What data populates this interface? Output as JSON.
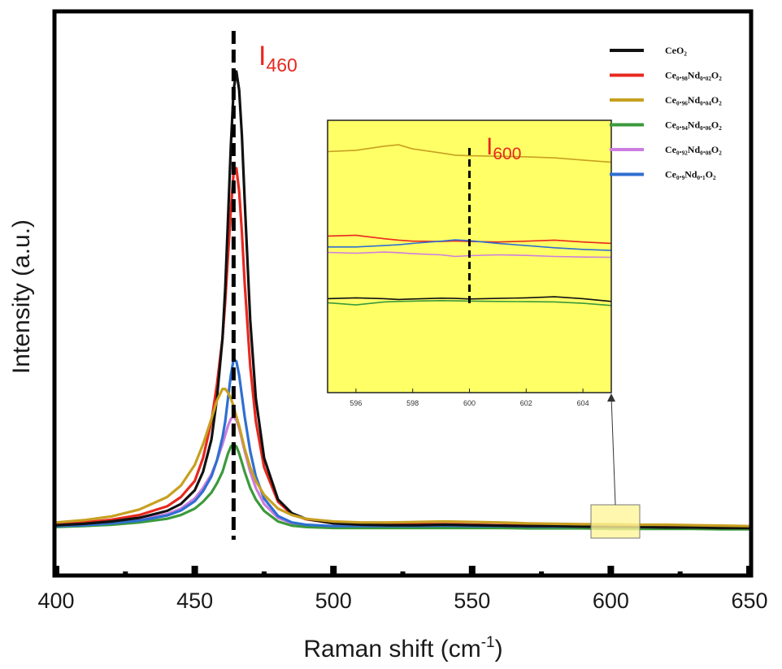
{
  "chart_data": {
    "type": "line",
    "xlabel": "Raman shift (cm",
    "xlabel_sup": "-1",
    "xlabel_close": ")",
    "ylabel": "Intensity (a.u.)",
    "xlim": [
      400,
      650
    ],
    "ylim": [
      0,
      1.0
    ],
    "x_ticks": [
      "400",
      "450",
      "500",
      "550",
      "600",
      "650"
    ],
    "y_ticks_shown": false,
    "grid": false,
    "legend_position": "top-right",
    "peak_line_x": 464,
    "annotations": {
      "main": {
        "text": "I",
        "sub": "460",
        "color": "#e8281f"
      },
      "inset": {
        "text": "I",
        "sub": "600",
        "color": "#e8281f"
      }
    },
    "x": [
      400,
      410,
      420,
      430,
      440,
      445,
      450,
      453,
      456,
      458,
      460,
      461,
      462,
      463,
      464,
      465,
      466,
      467,
      468,
      470,
      472,
      475,
      480,
      485,
      490,
      500,
      510,
      520,
      530,
      540,
      550,
      560,
      570,
      580,
      590,
      600,
      610,
      620,
      630,
      640,
      650
    ],
    "series": [
      {
        "name": "CeO₂",
        "color": "#111111",
        "values": [
          0.014,
          0.017,
          0.022,
          0.03,
          0.045,
          0.06,
          0.09,
          0.13,
          0.2,
          0.29,
          0.42,
          0.53,
          0.68,
          0.84,
          0.96,
          1.0,
          0.96,
          0.86,
          0.72,
          0.46,
          0.29,
          0.16,
          0.07,
          0.04,
          0.028,
          0.018,
          0.015,
          0.014,
          0.014,
          0.015,
          0.014,
          0.013,
          0.012,
          0.012,
          0.011,
          0.01,
          0.01,
          0.009,
          0.009,
          0.008,
          0.008
        ]
      },
      {
        "name": "Ce₀.₉₈Nd₀.₀₂O₂",
        "color": "#e8281f",
        "values": [
          0.016,
          0.02,
          0.026,
          0.036,
          0.055,
          0.075,
          0.11,
          0.16,
          0.24,
          0.32,
          0.42,
          0.5,
          0.6,
          0.7,
          0.78,
          0.79,
          0.74,
          0.65,
          0.54,
          0.36,
          0.24,
          0.14,
          0.065,
          0.038,
          0.027,
          0.018,
          0.015,
          0.015,
          0.016,
          0.016,
          0.015,
          0.014,
          0.013,
          0.013,
          0.012,
          0.012,
          0.011,
          0.011,
          0.01,
          0.01,
          0.009
        ]
      },
      {
        "name": "Ce₀.₉₆Nd₀.₀₄O₂",
        "color": "#c8a020",
        "values": [
          0.02,
          0.025,
          0.033,
          0.048,
          0.075,
          0.1,
          0.145,
          0.19,
          0.245,
          0.285,
          0.31,
          0.31,
          0.302,
          0.29,
          0.272,
          0.25,
          0.23,
          0.205,
          0.18,
          0.14,
          0.11,
          0.08,
          0.05,
          0.036,
          0.028,
          0.022,
          0.02,
          0.02,
          0.021,
          0.022,
          0.021,
          0.02,
          0.018,
          0.017,
          0.016,
          0.016,
          0.015,
          0.015,
          0.014,
          0.013,
          0.012
        ]
      },
      {
        "name": "Ce₀.₉₄Nd₀.₀₆O₂",
        "color": "#3b9a3b",
        "values": [
          0.01,
          0.012,
          0.015,
          0.02,
          0.028,
          0.036,
          0.05,
          0.065,
          0.085,
          0.105,
          0.13,
          0.15,
          0.17,
          0.185,
          0.19,
          0.185,
          0.17,
          0.15,
          0.13,
          0.095,
          0.07,
          0.045,
          0.022,
          0.013,
          0.01,
          0.008,
          0.008,
          0.008,
          0.008,
          0.008,
          0.008,
          0.008,
          0.007,
          0.007,
          0.007,
          0.006,
          0.006,
          0.006,
          0.006,
          0.005,
          0.005
        ]
      },
      {
        "name": "Ce₀.₉₂Nd₀.₀₈O₂",
        "color": "#cc7de0",
        "values": [
          0.012,
          0.015,
          0.019,
          0.026,
          0.038,
          0.05,
          0.072,
          0.095,
          0.125,
          0.155,
          0.19,
          0.21,
          0.23,
          0.245,
          0.25,
          0.242,
          0.225,
          0.2,
          0.175,
          0.13,
          0.095,
          0.06,
          0.03,
          0.018,
          0.014,
          0.011,
          0.01,
          0.01,
          0.011,
          0.011,
          0.01,
          0.01,
          0.009,
          0.009,
          0.009,
          0.008,
          0.008,
          0.008,
          0.008,
          0.007,
          0.007
        ]
      },
      {
        "name": "Ce₀.₉Nd₀.₁O₂",
        "color": "#2f6fd1",
        "values": [
          0.012,
          0.014,
          0.018,
          0.024,
          0.035,
          0.046,
          0.066,
          0.088,
          0.12,
          0.155,
          0.205,
          0.24,
          0.29,
          0.34,
          0.375,
          0.37,
          0.34,
          0.295,
          0.25,
          0.175,
          0.12,
          0.072,
          0.034,
          0.02,
          0.015,
          0.012,
          0.012,
          0.012,
          0.012,
          0.013,
          0.012,
          0.012,
          0.011,
          0.011,
          0.011,
          0.011,
          0.01,
          0.01,
          0.01,
          0.009,
          0.009
        ]
      }
    ],
    "inset": {
      "xlim": [
        595,
        605
      ],
      "ylim": [
        0,
        1
      ],
      "x_ticks": [
        "596",
        "598",
        "600",
        "602",
        "604"
      ],
      "x": [
        595,
        596,
        597,
        597.5,
        598,
        599,
        599.5,
        600,
        601,
        602,
        603,
        604,
        605
      ],
      "series": [
        {
          "name": "CeO₂",
          "values": [
            0.345,
            0.348,
            0.345,
            0.342,
            0.344,
            0.347,
            0.346,
            0.344,
            0.346,
            0.348,
            0.352,
            0.345,
            0.335
          ]
        },
        {
          "name": "Ce₀.₉₈Nd₀.₀₂O₂",
          "values": [
            0.575,
            0.578,
            0.565,
            0.56,
            0.556,
            0.555,
            0.557,
            0.555,
            0.553,
            0.556,
            0.56,
            0.553,
            0.548
          ]
        },
        {
          "name": "Ce₀.₉₆Nd₀.₀₄O₂",
          "values": [
            0.885,
            0.89,
            0.905,
            0.91,
            0.895,
            0.88,
            0.872,
            0.87,
            0.868,
            0.866,
            0.862,
            0.854,
            0.846
          ]
        },
        {
          "name": "Ce₀.₉₄Nd₀.₀₆O₂",
          "values": [
            0.33,
            0.322,
            0.333,
            0.335,
            0.336,
            0.338,
            0.337,
            0.336,
            0.335,
            0.334,
            0.333,
            0.328,
            0.32
          ]
        },
        {
          "name": "Ce₀.₉₂Nd₀.₀₈O₂",
          "values": [
            0.515,
            0.512,
            0.516,
            0.514,
            0.51,
            0.506,
            0.5,
            0.503,
            0.506,
            0.504,
            0.5,
            0.498,
            0.497
          ]
        },
        {
          "name": "Ce₀.₉Nd₀.₁O₂",
          "values": [
            0.535,
            0.535,
            0.54,
            0.543,
            0.548,
            0.556,
            0.561,
            0.558,
            0.548,
            0.54,
            0.532,
            0.526,
            0.522
          ]
        }
      ]
    }
  }
}
